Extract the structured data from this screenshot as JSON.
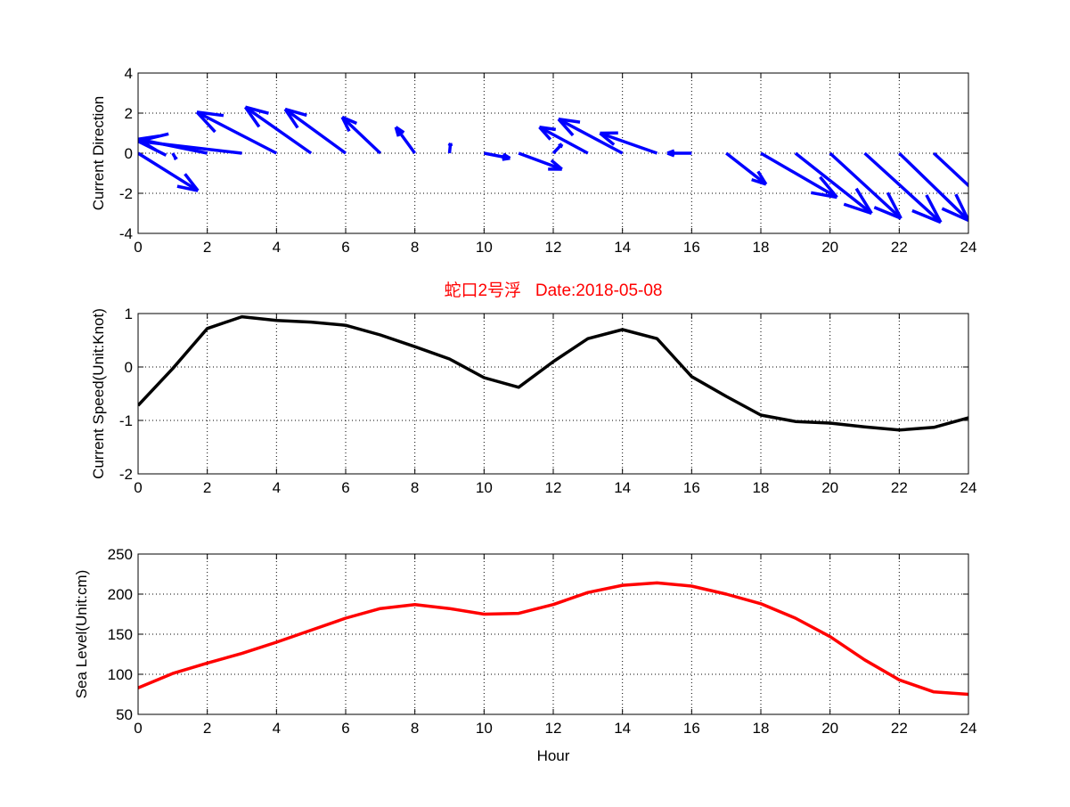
{
  "chart_data": [
    {
      "type": "quiver",
      "ylabel": "Current Direction",
      "xlim": [
        0,
        24
      ],
      "ylim": [
        -4,
        4
      ],
      "xticks": [
        0,
        2,
        4,
        6,
        8,
        10,
        12,
        14,
        16,
        18,
        20,
        22,
        24
      ],
      "yticks": [
        -4,
        -2,
        0,
        2,
        4
      ],
      "grid": true,
      "color": "#0000ff",
      "x": [
        0,
        1,
        2,
        3,
        4,
        5,
        6,
        7,
        8,
        9,
        10,
        11,
        12,
        13,
        14,
        15,
        16,
        17,
        18,
        19,
        20,
        21,
        22,
        23
      ],
      "u": [
        1.73,
        0.1,
        -2.0,
        -3.0,
        -2.3,
        -1.9,
        -1.75,
        -1.1,
        -0.55,
        0.03,
        0.75,
        1.25,
        0.25,
        -1.4,
        -1.85,
        -1.65,
        -0.7,
        1.15,
        2.2,
        2.2,
        2.05,
        2.2,
        2.0,
        1.8
      ],
      "v": [
        -1.87,
        -0.3,
        0.7,
        0.6,
        2.05,
        2.3,
        2.2,
        1.8,
        1.3,
        0.5,
        -0.25,
        -0.8,
        0.45,
        1.3,
        1.7,
        1.0,
        0.0,
        -1.55,
        -2.2,
        -3.0,
        -3.25,
        -3.45,
        -3.35,
        -2.9
      ]
    },
    {
      "type": "line",
      "title": "蛇口2号浮   Date:2018-05-08",
      "ylabel": "Current Speed(Unit:Knot)",
      "xlim": [
        0,
        24
      ],
      "ylim": [
        -2,
        1
      ],
      "xticks": [
        0,
        2,
        4,
        6,
        8,
        10,
        12,
        14,
        16,
        18,
        20,
        22,
        24
      ],
      "yticks": [
        -2,
        -1,
        0,
        1
      ],
      "grid": true,
      "color": "#000000",
      "x": [
        0,
        1,
        2,
        3,
        4,
        5,
        6,
        7,
        8,
        9,
        10,
        11,
        12,
        13,
        14,
        15,
        16,
        17,
        18,
        19,
        20,
        21,
        22,
        23,
        24
      ],
      "y": [
        -0.72,
        -0.03,
        0.72,
        0.94,
        0.87,
        0.84,
        0.78,
        0.6,
        0.38,
        0.15,
        -0.2,
        -0.38,
        0.1,
        0.53,
        0.7,
        0.53,
        -0.18,
        -0.55,
        -0.9,
        -1.02,
        -1.05,
        -1.12,
        -1.18,
        -1.13,
        -0.95
      ]
    },
    {
      "type": "line",
      "xlabel": "Hour",
      "ylabel": "Sea Level(Unit:cm)",
      "xlim": [
        0,
        24
      ],
      "ylim": [
        50,
        250
      ],
      "xticks": [
        0,
        2,
        4,
        6,
        8,
        10,
        12,
        14,
        16,
        18,
        20,
        22,
        24
      ],
      "yticks": [
        50,
        100,
        150,
        200,
        250
      ],
      "grid": true,
      "color": "#ff0000",
      "x": [
        0,
        1,
        2,
        3,
        4,
        5,
        6,
        7,
        8,
        9,
        10,
        11,
        12,
        13,
        14,
        15,
        16,
        17,
        18,
        19,
        20,
        21,
        22,
        23,
        24
      ],
      "y": [
        83,
        101,
        114,
        126,
        140,
        155,
        170,
        182,
        187,
        182,
        175,
        176,
        187,
        202,
        211,
        214,
        210,
        200,
        188,
        170,
        147,
        118,
        93,
        78,
        75
      ]
    }
  ]
}
